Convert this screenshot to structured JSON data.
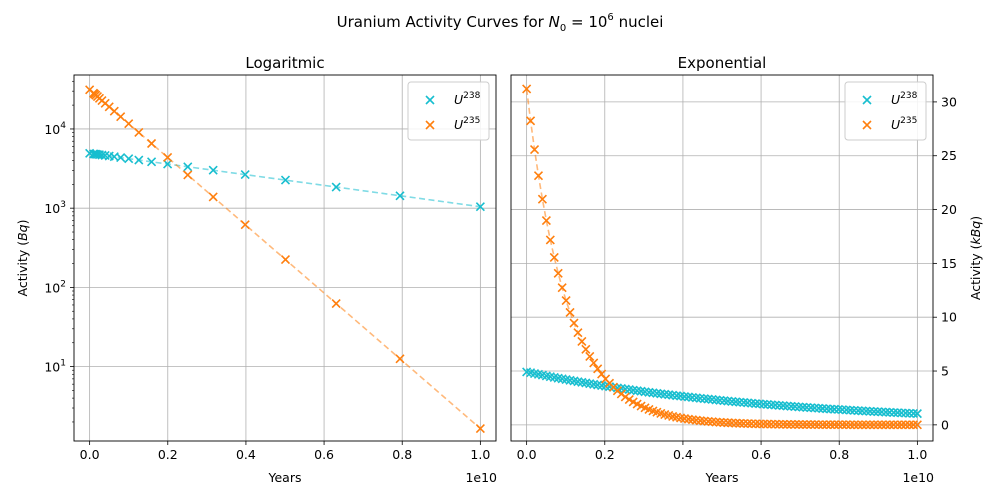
{
  "figure": {
    "suptitle_text": "Uranium Activity Curves for ",
    "suptitle_math_base": "N",
    "suptitle_math_sub": "0",
    "suptitle_math_eq": " = 10",
    "suptitle_math_exp": "6",
    "suptitle_tail": " nuclei"
  },
  "colors": {
    "u238": "#17becf",
    "u235": "#ff7f0e",
    "grid": "#b0b0b0"
  },
  "chart_data": [
    {
      "type": "scatter",
      "title": "Logaritmic",
      "xlabel": "Years",
      "ylabel_pre": "Activity (",
      "ylabel_unit": "Bq",
      "ylabel_post": ")",
      "x_offset_text": "1e10",
      "yscale": "log",
      "xlim": [
        -0.04,
        1.04
      ],
      "ylim": [
        1.15,
        48000
      ],
      "xticks": [
        "0.0",
        "0.2",
        "0.4",
        "0.6",
        "0.8",
        "1.0"
      ],
      "yticks": [
        {
          "base": "10",
          "exp": "1"
        },
        {
          "base": "10",
          "exp": "2"
        },
        {
          "base": "10",
          "exp": "3"
        },
        {
          "base": "10",
          "exp": "4"
        }
      ],
      "ytick_values": [
        10,
        100,
        1000,
        10000
      ],
      "legend_position": "top-right",
      "grid": true,
      "x_spacing": "geometric",
      "series": [
        {
          "name_base": "U",
          "name_sup": "238",
          "marker": "x",
          "line": "dashed",
          "A0": 4.92,
          "half_life_e10": 0.4468
        },
        {
          "name_base": "U",
          "name_sup": "235",
          "marker": "x",
          "line": "dashed",
          "A0": 31.2,
          "half_life_e10": 0.0704
        }
      ]
    },
    {
      "type": "scatter",
      "title": "Exponential",
      "xlabel": "Years",
      "ylabel_pre": "Activity (",
      "ylabel_unit": "kBq",
      "ylabel_post": ")",
      "x_offset_text": "1e10",
      "yscale": "linear",
      "xlim": [
        -0.04,
        1.04
      ],
      "ylim": [
        -1.5,
        32.5
      ],
      "xticks": [
        "0.0",
        "0.2",
        "0.4",
        "0.6",
        "0.8",
        "1.0"
      ],
      "yticks": [
        "0",
        "5",
        "10",
        "15",
        "20",
        "25",
        "30"
      ],
      "ytick_values": [
        0,
        5,
        10,
        15,
        20,
        25,
        30
      ],
      "legend_position": "top-right",
      "grid": true,
      "x_spacing": "linear",
      "series": [
        {
          "name_base": "U",
          "name_sup": "238",
          "marker": "x",
          "line": "dashed",
          "A0": 4.92,
          "half_life_e10": 0.4468
        },
        {
          "name_base": "U",
          "name_sup": "235",
          "marker": "x",
          "line": "dashed",
          "A0": 31.2,
          "half_life_e10": 0.0704
        }
      ]
    }
  ]
}
